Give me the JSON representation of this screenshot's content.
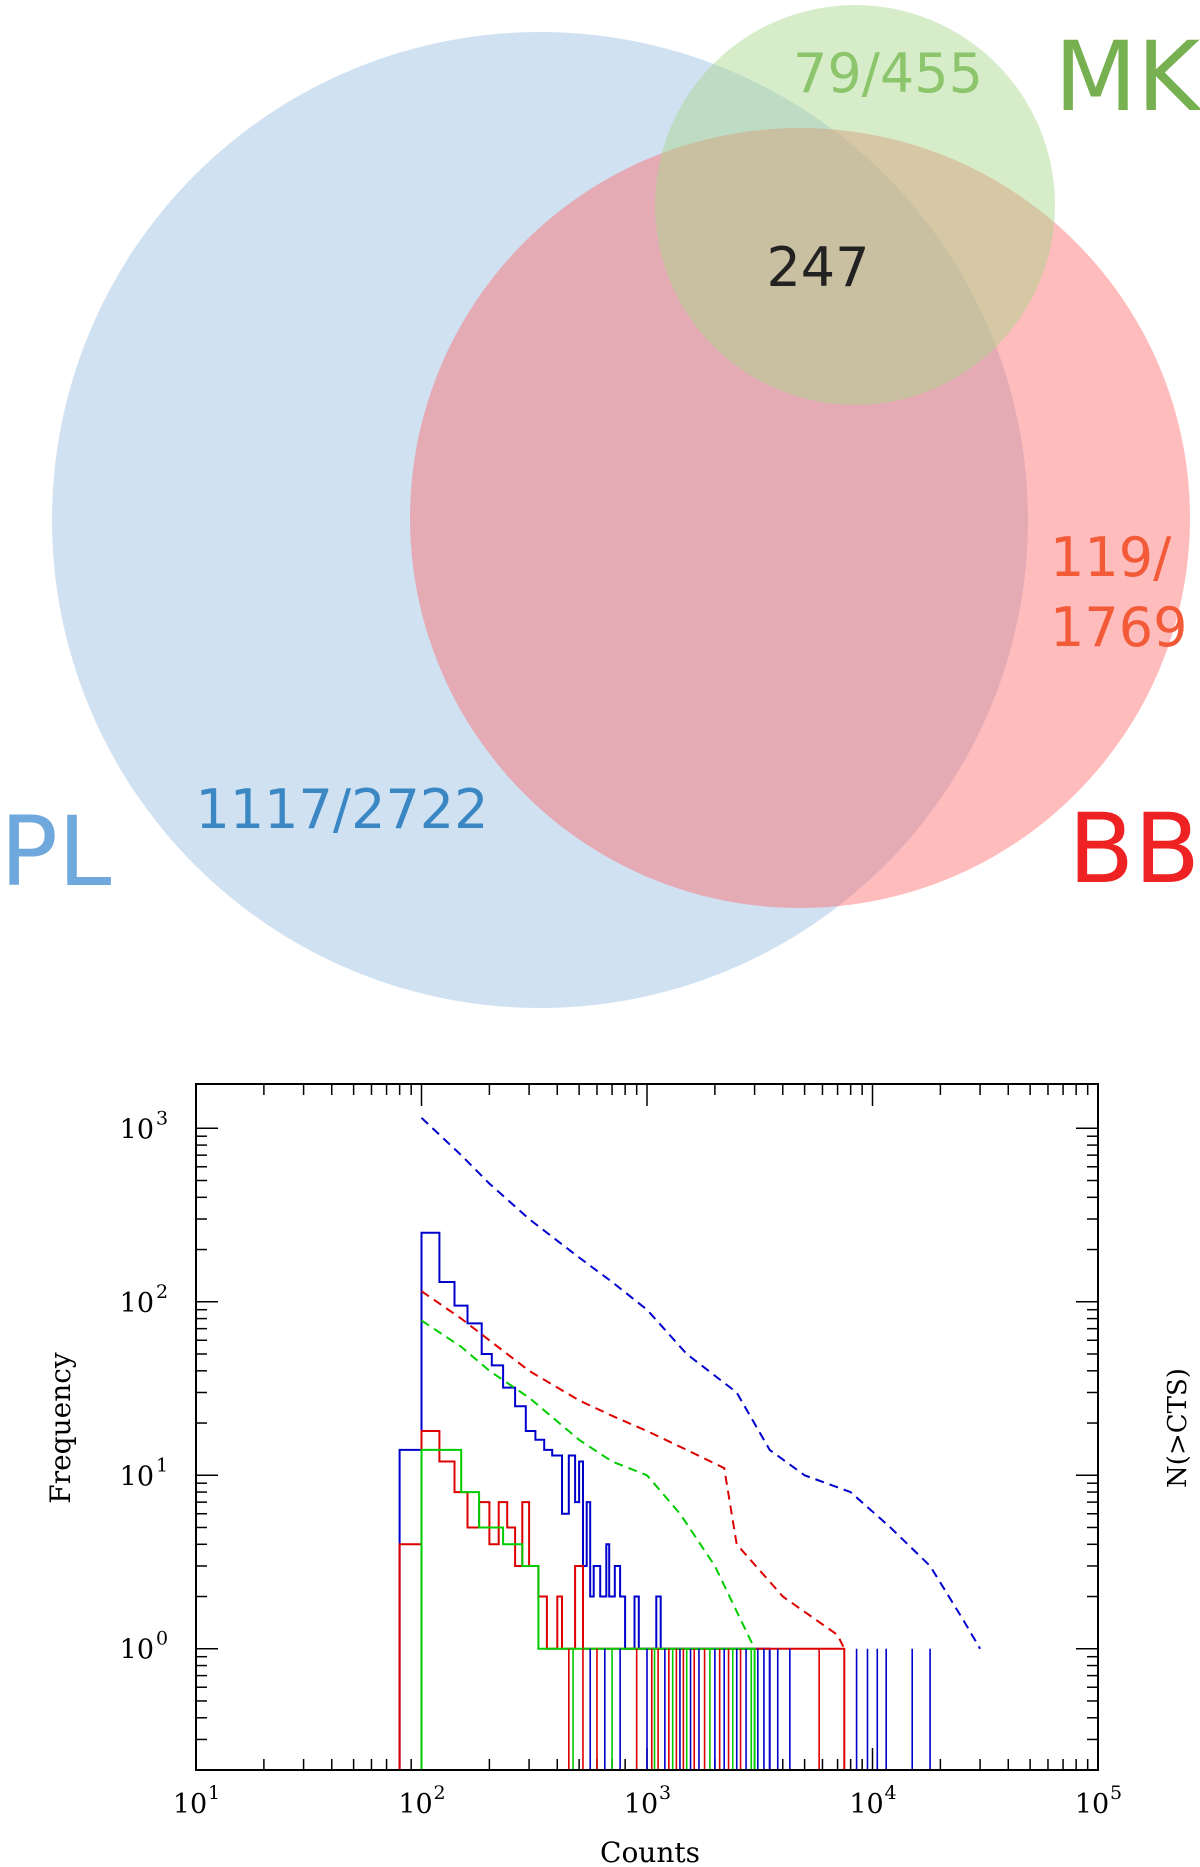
{
  "chart_data": [
    {
      "type": "venn",
      "sets": [
        {
          "name": "PL",
          "label": "PL",
          "color": "#6fa8dc",
          "fill": "#a9c9e8",
          "count_label": "1117/2722"
        },
        {
          "name": "BB",
          "label": "BB",
          "color": "#ee2222",
          "fill": "#ff6b6b",
          "count_label": "119/\n1769",
          "count_label_lines": [
            "119/",
            "1769"
          ]
        },
        {
          "name": "MK",
          "label": "MK",
          "color": "#77b050",
          "fill": "#a6d68a",
          "count_label": "79/455"
        }
      ],
      "intersections": [
        {
          "sets": [
            "PL",
            "BB",
            "MK"
          ],
          "value": 247,
          "label": "247"
        }
      ],
      "count_colors": {
        "PL": "#3a87c4",
        "BB": "#f25a38",
        "MK": "#8cc56c",
        "center": "#222222"
      }
    },
    {
      "type": "line",
      "style": "histogram-step",
      "xlabel": "Counts",
      "ylabel": "Frequency",
      "y2label": "N(>CTS)",
      "xscale": "log",
      "yscale": "log",
      "xlim": [
        10,
        100000
      ],
      "ylim": [
        0.2,
        1800
      ],
      "x_ticks": [
        10,
        100,
        1000,
        10000,
        100000
      ],
      "x_tick_labels": [
        [
          "10",
          "1"
        ],
        [
          "10",
          "2"
        ],
        [
          "10",
          "3"
        ],
        [
          "10",
          "4"
        ],
        [
          "10",
          "5"
        ]
      ],
      "y_ticks": [
        1,
        10,
        100,
        1000
      ],
      "y_tick_labels": [
        [
          "10",
          "0"
        ],
        [
          "10",
          "1"
        ],
        [
          "10",
          "2"
        ],
        [
          "10",
          "3"
        ]
      ],
      "series": [
        {
          "color": "#0000cc",
          "style": "solid",
          "kind": "step",
          "points": [
            [
              80,
              0.2
            ],
            [
              80,
              14
            ],
            [
              100,
              14
            ],
            [
              100,
              250
            ],
            [
              120,
              250
            ],
            [
              120,
              130
            ],
            [
              140,
              130
            ],
            [
              140,
              95
            ],
            [
              160,
              95
            ],
            [
              160,
              75
            ],
            [
              185,
              75
            ],
            [
              185,
              50
            ],
            [
              205,
              50
            ],
            [
              205,
              43
            ],
            [
              230,
              43
            ],
            [
              230,
              32
            ],
            [
              260,
              32
            ],
            [
              260,
              25
            ],
            [
              290,
              25
            ],
            [
              290,
              18
            ],
            [
              320,
              18
            ],
            [
              320,
              16
            ],
            [
              350,
              16
            ],
            [
              350,
              14
            ],
            [
              380,
              14
            ],
            [
              380,
              13
            ],
            [
              420,
              13
            ],
            [
              420,
              6
            ],
            [
              450,
              6
            ],
            [
              450,
              13
            ],
            [
              480,
              13
            ],
            [
              480,
              7
            ],
            [
              500,
              7
            ],
            [
              500,
              12
            ],
            [
              520,
              12
            ],
            [
              520,
              3
            ],
            [
              540,
              3
            ],
            [
              540,
              7
            ],
            [
              560,
              7
            ],
            [
              560,
              2
            ],
            [
              580,
              2
            ],
            [
              580,
              3
            ],
            [
              620,
              3
            ],
            [
              620,
              2
            ],
            [
              660,
              2
            ],
            [
              660,
              4
            ],
            [
              680,
              4
            ],
            [
              680,
              2
            ],
            [
              720,
              2
            ],
            [
              720,
              3
            ],
            [
              760,
              3
            ],
            [
              760,
              2
            ],
            [
              800,
              2
            ],
            [
              800,
              1
            ],
            [
              880,
              1
            ],
            [
              880,
              2
            ],
            [
              920,
              2
            ],
            [
              920,
              1
            ],
            [
              1100,
              1
            ],
            [
              1100,
              2
            ],
            [
              1150,
              2
            ],
            [
              1150,
              1
            ],
            [
              3500,
              1
            ],
            [
              3500,
              0.2
            ]
          ]
        },
        {
          "color": "#dd0000",
          "style": "solid",
          "kind": "step",
          "points": [
            [
              80,
              0.2
            ],
            [
              80,
              4
            ],
            [
              100,
              4
            ],
            [
              100,
              18
            ],
            [
              120,
              18
            ],
            [
              120,
              12
            ],
            [
              140,
              12
            ],
            [
              140,
              8
            ],
            [
              160,
              8
            ],
            [
              160,
              5
            ],
            [
              180,
              5
            ],
            [
              180,
              7
            ],
            [
              200,
              7
            ],
            [
              200,
              4
            ],
            [
              220,
              4
            ],
            [
              220,
              7
            ],
            [
              240,
              7
            ],
            [
              240,
              5
            ],
            [
              260,
              5
            ],
            [
              260,
              3
            ],
            [
              280,
              3
            ],
            [
              280,
              7
            ],
            [
              300,
              7
            ],
            [
              300,
              3
            ],
            [
              330,
              3
            ],
            [
              330,
              2
            ],
            [
              360,
              2
            ],
            [
              360,
              1
            ],
            [
              400,
              1
            ],
            [
              400,
              2
            ],
            [
              420,
              2
            ],
            [
              420,
              1
            ],
            [
              480,
              1
            ],
            [
              480,
              3
            ],
            [
              520,
              3
            ],
            [
              520,
              1
            ],
            [
              7500,
              1
            ],
            [
              7500,
              0.2
            ]
          ]
        },
        {
          "color": "#00cc00",
          "style": "solid",
          "kind": "step",
          "points": [
            [
              100,
              0.2
            ],
            [
              100,
              14
            ],
            [
              150,
              14
            ],
            [
              150,
              8
            ],
            [
              180,
              8
            ],
            [
              180,
              5
            ],
            [
              230,
              5
            ],
            [
              230,
              4
            ],
            [
              280,
              4
            ],
            [
              280,
              3
            ],
            [
              330,
              3
            ],
            [
              330,
              1
            ],
            [
              3000,
              1
            ],
            [
              3000,
              0.2
            ]
          ]
        },
        {
          "color": "#0000cc",
          "style": "dashed",
          "kind": "cumulative",
          "points": [
            [
              100,
              1150
            ],
            [
              150,
              700
            ],
            [
              200,
              480
            ],
            [
              300,
              300
            ],
            [
              500,
              180
            ],
            [
              700,
              130
            ],
            [
              1000,
              90
            ],
            [
              1500,
              50
            ],
            [
              2500,
              30
            ],
            [
              3500,
              14
            ],
            [
              5000,
              10
            ],
            [
              8000,
              8
            ],
            [
              12000,
              5
            ],
            [
              18000,
              3
            ],
            [
              25000,
              1.5
            ],
            [
              30000,
              1
            ]
          ]
        },
        {
          "color": "#dd0000",
          "style": "dashed",
          "kind": "cumulative",
          "points": [
            [
              100,
              115
            ],
            [
              150,
              80
            ],
            [
              200,
              60
            ],
            [
              300,
              40
            ],
            [
              500,
              27
            ],
            [
              700,
              22
            ],
            [
              1000,
              18
            ],
            [
              1500,
              14
            ],
            [
              2200,
              11
            ],
            [
              2500,
              4
            ],
            [
              4000,
              2
            ],
            [
              7000,
              1.2
            ],
            [
              7500,
              1
            ]
          ]
        },
        {
          "color": "#00cc00",
          "style": "dashed",
          "kind": "cumulative",
          "points": [
            [
              100,
              78
            ],
            [
              150,
              55
            ],
            [
              200,
              40
            ],
            [
              300,
              28
            ],
            [
              500,
              16
            ],
            [
              700,
              12
            ],
            [
              1000,
              10
            ],
            [
              1400,
              6
            ],
            [
              2000,
              3
            ],
            [
              3000,
              1
            ]
          ]
        }
      ]
    }
  ]
}
